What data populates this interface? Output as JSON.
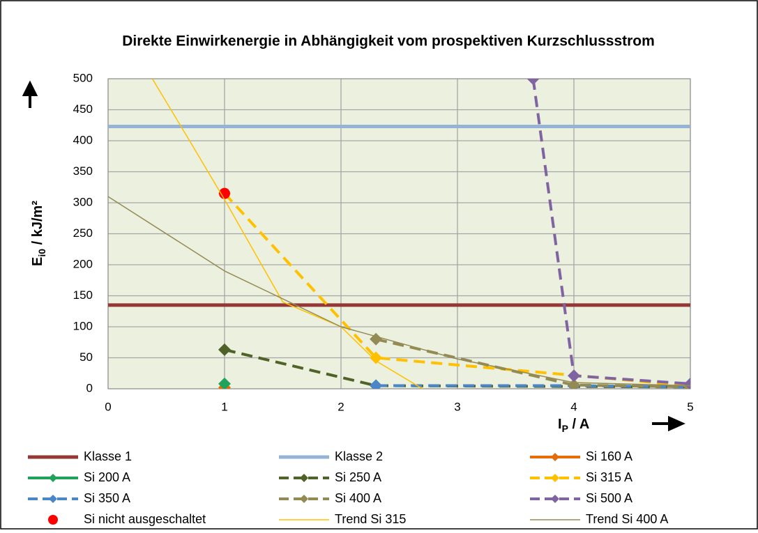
{
  "chart_data": {
    "type": "line",
    "title": "Direkte Einwirkenergie in Abhängigkeit vom prospektiven Kurzschlussstrom",
    "xlabel": {
      "main": "I",
      "sub": "P",
      "rest": " / A"
    },
    "ylabel": {
      "main": "E",
      "sub": "i0",
      "rest": " / kJ/m²"
    },
    "xlim": [
      0,
      5
    ],
    "xticks": [
      0,
      1,
      2,
      3,
      4,
      5
    ],
    "ylim": [
      0,
      500
    ],
    "yticks": [
      0,
      50,
      100,
      150,
      200,
      250,
      300,
      350,
      400,
      450,
      500
    ],
    "grid": true,
    "plot_background": "#ebf1de",
    "series": [
      {
        "name": "Klasse 1",
        "color": "#953735",
        "width": 5,
        "dash": false,
        "marker": "none",
        "x": [
          0,
          5
        ],
        "values": [
          135,
          135
        ]
      },
      {
        "name": "Klasse 2",
        "color": "#95b3d7",
        "width": 5,
        "dash": false,
        "marker": "none",
        "x": [
          0,
          5
        ],
        "values": [
          423,
          423
        ]
      },
      {
        "name": "Si 160 A",
        "color": "#e46c0a",
        "width": 4,
        "dash": false,
        "marker": "diamond",
        "x": [
          1
        ],
        "values": [
          2
        ]
      },
      {
        "name": "Si 200 A",
        "color": "#1fa35a",
        "width": 4,
        "dash": false,
        "marker": "diamond",
        "x": [
          1
        ],
        "values": [
          8
        ]
      },
      {
        "name": "Si 250 A",
        "color": "#4f6228",
        "width": 4,
        "dash": true,
        "marker": "diamond",
        "x": [
          1,
          2.3,
          5
        ],
        "values": [
          63,
          5,
          3
        ]
      },
      {
        "name": "Si 315 A",
        "color": "#ffc000",
        "width": 4,
        "dash": true,
        "marker": "diamond",
        "x": [
          1,
          2.3,
          5
        ],
        "values": [
          315,
          50,
          5
        ]
      },
      {
        "name": "Si 350 A",
        "color": "#4a86c8",
        "width": 4,
        "dash": true,
        "marker": "diamond",
        "x": [
          2.3,
          4,
          5
        ],
        "values": [
          5,
          5,
          3
        ]
      },
      {
        "name": "Si 400 A",
        "color": "#948a54",
        "width": 4,
        "dash": true,
        "marker": "diamond",
        "x": [
          2.3,
          4,
          5
        ],
        "values": [
          80,
          6,
          3
        ]
      },
      {
        "name": "Si 500 A",
        "color": "#8064a2",
        "width": 4,
        "dash": true,
        "marker": "diamond",
        "x": [
          3.65,
          4,
          5
        ],
        "values": [
          500,
          21,
          8
        ]
      },
      {
        "name": "Si nicht ausgeschaltet",
        "color": "#ff0000",
        "width": 0,
        "dash": false,
        "marker": "circle",
        "x": [
          1
        ],
        "values": [
          315
        ]
      },
      {
        "name": "Trend Si 315",
        "color": "#ffc000",
        "width": 1.5,
        "dash": false,
        "marker": "none",
        "x": [
          0.38,
          0.7,
          1,
          1.5,
          2,
          2.3,
          2.7
        ],
        "values": [
          500,
          400,
          305,
          140,
          100,
          45,
          0
        ]
      },
      {
        "name": "Trend Si 400 A",
        "color": "#948a54",
        "width": 1.5,
        "dash": false,
        "marker": "none",
        "x": [
          0,
          1,
          2,
          3,
          4,
          5
        ],
        "values": [
          310,
          190,
          100,
          48,
          10,
          5
        ]
      }
    ]
  }
}
